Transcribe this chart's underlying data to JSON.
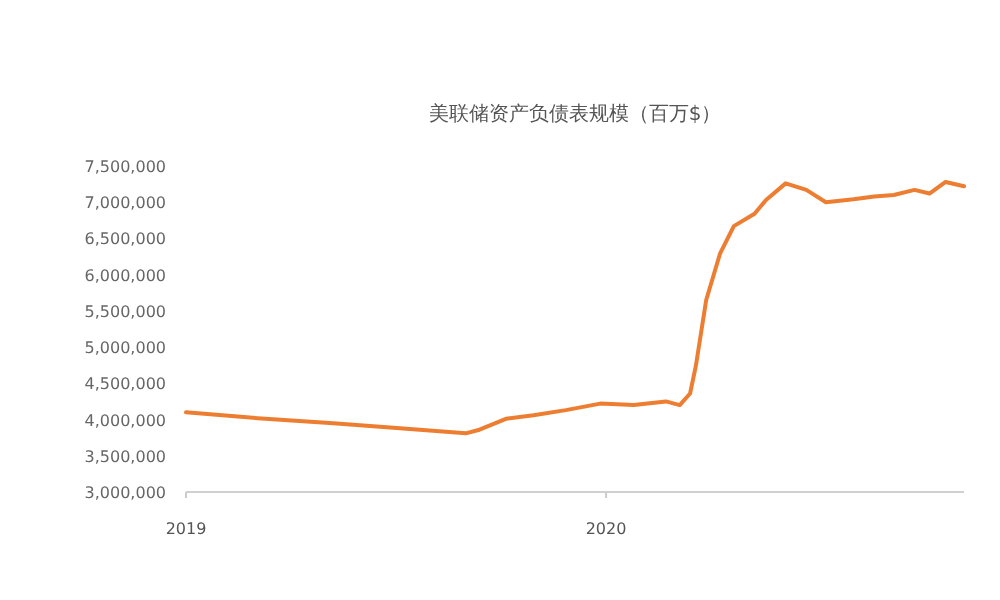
{
  "chart_data": {
    "type": "line",
    "title": "美联储资产负债表规模（百万$）",
    "x": [
      "2019-01-01",
      "2019-03-11",
      "2019-05-09",
      "2019-07-06",
      "2019-09-01",
      "2019-09-13",
      "2019-10-06",
      "2019-10-30",
      "2019-11-27",
      "2019-12-27",
      "2020-01-25",
      "2020-02-22",
      "2020-03-05",
      "2020-03-14",
      "2020-03-19",
      "2020-03-28",
      "2020-04-09",
      "2020-04-21",
      "2020-05-09",
      "2020-05-19",
      "2020-06-05",
      "2020-06-23",
      "2020-07-10",
      "2020-08-03",
      "2020-08-21",
      "2020-09-07",
      "2020-09-25",
      "2020-10-08",
      "2020-10-22",
      "2020-11-07"
    ],
    "series": [
      {
        "color": "#ed7d31",
        "values": [
          4100000,
          4010000,
          3950000,
          3880000,
          3810000,
          3860000,
          4010000,
          4060000,
          4130000,
          4220000,
          4200000,
          4250000,
          4200000,
          4360000,
          4740000,
          5650000,
          6290000,
          6670000,
          6840000,
          7030000,
          7260000,
          7170000,
          7000000,
          7040000,
          7080000,
          7100000,
          7170000,
          7120000,
          7280000,
          7220000
        ]
      }
    ],
    "xlim": [
      "2019-01-01",
      "2020-11-07"
    ],
    "xticks": [
      "2019",
      "2020"
    ],
    "ylim": [
      3000000,
      7500000
    ],
    "yticks": [
      {
        "value": 3000000,
        "label": "3,000,000"
      },
      {
        "value": 3500000,
        "label": "3,500,000"
      },
      {
        "value": 4000000,
        "label": "4,000,000"
      },
      {
        "value": 4500000,
        "label": "4,500,000"
      },
      {
        "value": 5000000,
        "label": "5,000,000"
      },
      {
        "value": 5500000,
        "label": "5,500,000"
      },
      {
        "value": 6000000,
        "label": "6,000,000"
      },
      {
        "value": 6500000,
        "label": "6,500,000"
      },
      {
        "value": 7000000,
        "label": "7,000,000"
      },
      {
        "value": 7500000,
        "label": "7,500,000"
      }
    ],
    "grid": false,
    "marker": "none",
    "line_style": "solid"
  }
}
